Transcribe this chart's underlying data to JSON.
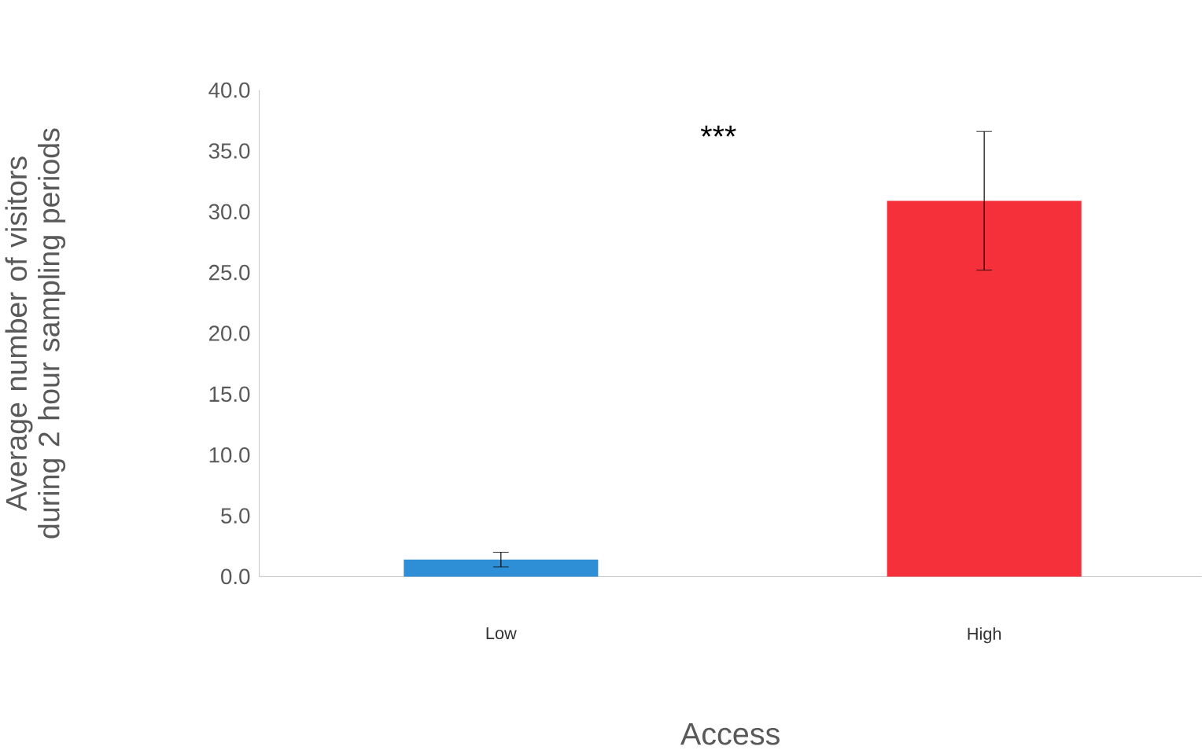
{
  "chart_data": {
    "type": "bar",
    "xlabel": "Access",
    "ylabel": "Average number of visitors during 2 hour sampling periods",
    "categories": [
      "Low",
      "High"
    ],
    "values": [
      1.4,
      30.9
    ],
    "errors": [
      0.6,
      5.7
    ],
    "colors": [
      "#2f8fd6",
      "#f5303a"
    ],
    "ylim": [
      0,
      40
    ],
    "yticks": [
      {
        "value": 0,
        "label": "0.0"
      },
      {
        "value": 5,
        "label": "5.0"
      },
      {
        "value": 10,
        "label": "10.0"
      },
      {
        "value": 15,
        "label": "15.0"
      },
      {
        "value": 20,
        "label": "20.0"
      },
      {
        "value": 25,
        "label": "25.0"
      },
      {
        "value": 30,
        "label": "30.0"
      },
      {
        "value": 35,
        "label": "35.0"
      },
      {
        "value": 40,
        "label": "40.0"
      }
    ],
    "annotations": [
      "***"
    ],
    "grid": false
  }
}
